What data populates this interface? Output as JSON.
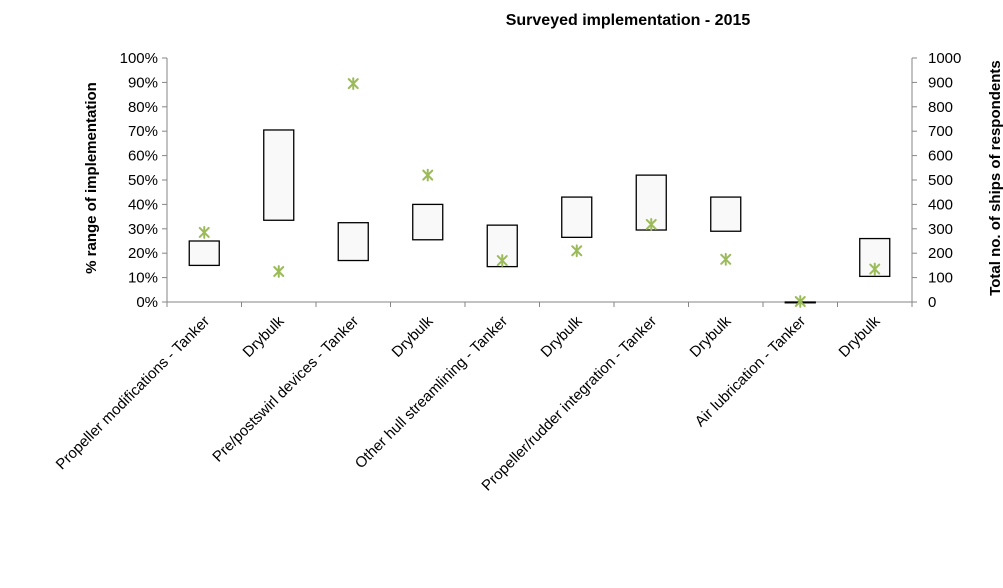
{
  "chart_data": {
    "type": "bar",
    "subtype": "floating-range-with-markers",
    "title": "Surveyed implementation - 2015",
    "ylabel": "% range of implementation",
    "y2label": "Total no. of ships of respondents",
    "ylim": [
      0,
      100
    ],
    "y2lim": [
      0,
      1000
    ],
    "yticks": [
      "0%",
      "10%",
      "20%",
      "30%",
      "40%",
      "50%",
      "60%",
      "70%",
      "80%",
      "90%",
      "100%"
    ],
    "y2ticks": [
      "0",
      "100",
      "200",
      "300",
      "400",
      "500",
      "600",
      "700",
      "800",
      "900",
      "1000"
    ],
    "categories": [
      "Propeller modifications - Tanker",
      "Drybulk",
      "Pre/postswirl devices - Tanker",
      "Drybulk",
      "Other hull streamlining - Tanker",
      "Drybulk",
      "Propeller/rudder integration - Tanker",
      "Drybulk",
      "Air lubrication - Tanker",
      "Drybulk"
    ],
    "series": [
      {
        "values_low": [
          15,
          33.5,
          17,
          25.5,
          14.5,
          26.5,
          29.5,
          29,
          0,
          10.5
        ],
        "values_high": [
          25,
          70.5,
          32.5,
          40,
          31.5,
          43,
          52,
          43,
          0,
          26
        ]
      },
      {
        "axis": "right",
        "marker": "asterisk",
        "values": [
          285,
          125,
          895,
          520,
          170,
          210,
          318,
          175,
          2,
          135
        ]
      }
    ],
    "colors": {
      "box_fill": "#f9f9f9",
      "box_stroke": "#000000",
      "marker": "#9bbb59",
      "axis": "#868686"
    },
    "grid": false,
    "legend": "none"
  }
}
